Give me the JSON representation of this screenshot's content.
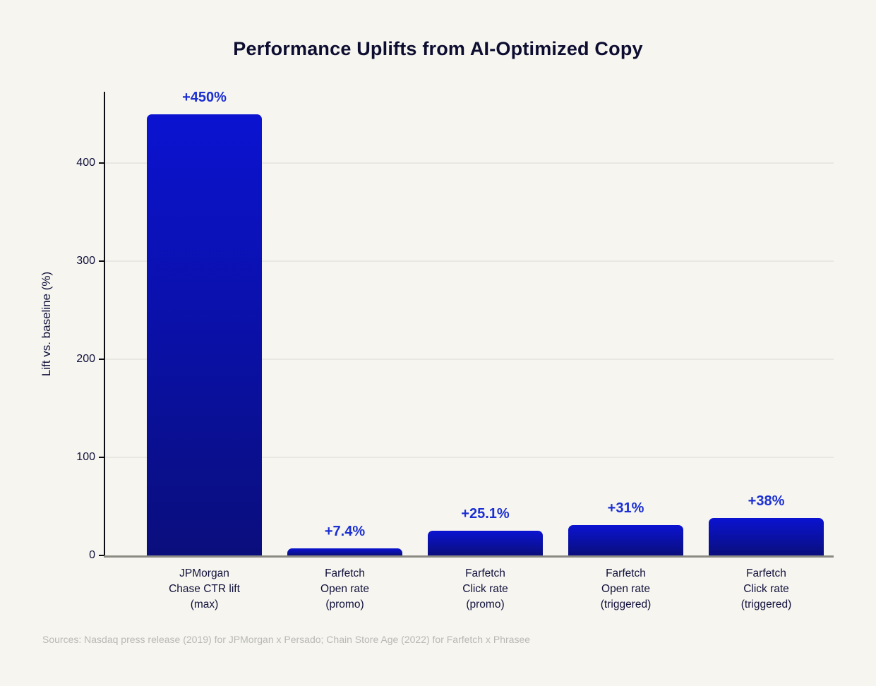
{
  "header": {
    "title": "Performance Uplifts from AI-Optimized Copy"
  },
  "footer": {
    "source_note": "Sources: Nasdaq press release (2019) for JPMorgan x Persado; Chain Store Age (2022) for Farfetch x Phrasee"
  },
  "chart_data": {
    "type": "bar",
    "title": "Performance Uplifts from AI-Optimized Copy",
    "xlabel": "",
    "ylabel": "Lift vs. baseline (%)",
    "ylim": [
      0,
      473
    ],
    "yticks": [
      0,
      100,
      200,
      300,
      400
    ],
    "grid": "horizontal-light",
    "legend": "none",
    "categories": [
      [
        "JPMorgan",
        "Chase CTR lift",
        "(max)"
      ],
      [
        "Farfetch",
        "Open rate",
        "(promo)"
      ],
      [
        "Farfetch",
        "Click rate",
        "(promo)"
      ],
      [
        "Farfetch",
        "Open rate",
        "(triggered)"
      ],
      [
        "Farfetch",
        "Click rate",
        "(triggered)"
      ]
    ],
    "values": [
      450,
      7.4,
      25.1,
      31,
      38
    ],
    "value_labels": [
      "+450%",
      "+7.4%",
      "+25.1%",
      "+31%",
      "+38%"
    ],
    "colors": {
      "background": "#f6f5f0",
      "title_text": "#0d0d30",
      "axis_text": "#10103a",
      "value_label": "#1b2fd2",
      "bar_gradient_top": "#0b13d1",
      "bar_gradient_bottom": "#0a0e7c",
      "gridline": "#e9e7e2",
      "y_axis_line": "#0b0b12",
      "x_axis_line": "#8b8b83",
      "source_text": "#b9b8b4"
    }
  }
}
